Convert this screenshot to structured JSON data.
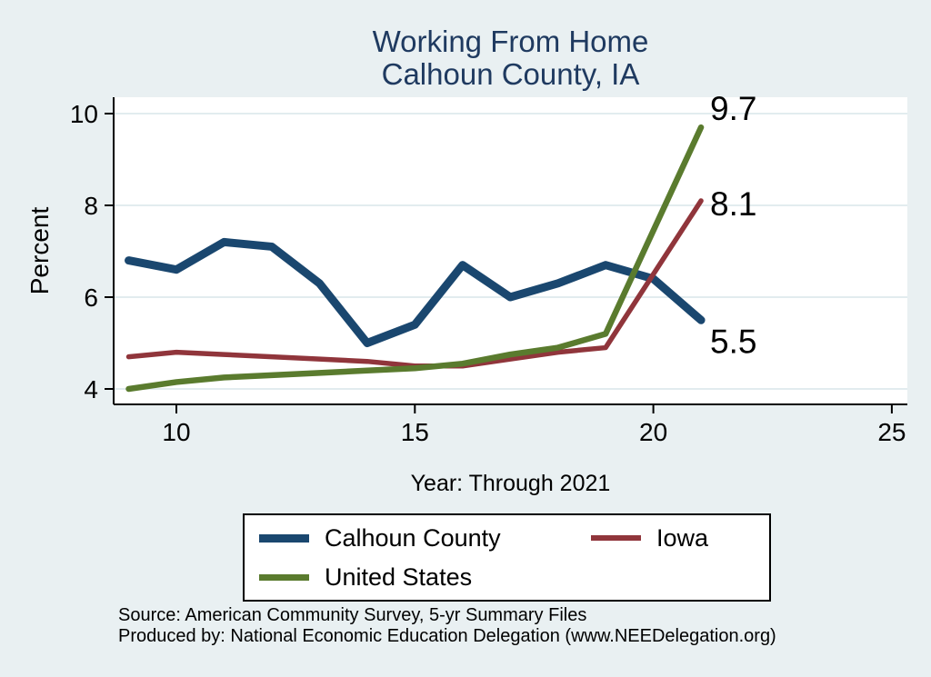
{
  "title": {
    "line1": "Working From Home",
    "line2": "Calhoun County, IA"
  },
  "chart_data": {
    "type": "line",
    "title": "Working From Home",
    "subtitle": "Calhoun County, IA",
    "xlabel": "Year: Through 2021",
    "ylabel": "Percent",
    "x": [
      9,
      10,
      11,
      12,
      13,
      14,
      15,
      16,
      17,
      18,
      19,
      20,
      21
    ],
    "series": [
      {
        "name": "Calhoun County",
        "color": "#1a476f",
        "values": [
          6.8,
          6.6,
          7.2,
          7.1,
          6.3,
          5.0,
          5.4,
          6.7,
          6.0,
          6.3,
          6.7,
          6.4,
          5.5
        ],
        "end_label": "5.5"
      },
      {
        "name": "Iowa",
        "color": "#90353b",
        "values": [
          4.7,
          4.8,
          4.75,
          4.7,
          4.65,
          4.6,
          4.5,
          4.5,
          4.65,
          4.8,
          4.9,
          6.5,
          8.1
        ],
        "end_label": "8.1"
      },
      {
        "name": "United States",
        "color": "#5a7b2e",
        "values": [
          4.0,
          4.15,
          4.25,
          4.3,
          4.35,
          4.4,
          4.45,
          4.55,
          4.75,
          4.9,
          5.2,
          7.45,
          9.7
        ],
        "end_label": "9.7"
      }
    ],
    "x_ticks": [
      10,
      15,
      20,
      25
    ],
    "y_ticks": [
      4,
      6,
      8,
      10
    ],
    "xlim": [
      8.7,
      25.3
    ],
    "ylim": [
      3.7,
      10.4
    ],
    "grid": true,
    "legend_position": "bottom"
  },
  "footer": {
    "source": "Source: American Community Survey, 5-yr Summary Files",
    "produced_by": "Produced by: National Economic Education Delegation (www.NEEDelegation.org)"
  },
  "colors": {
    "background": "#e9f0f2",
    "plot_background": "#ffffff",
    "gridline": "#e2ecef",
    "axis": "#000000",
    "title": "#1f3a60"
  }
}
